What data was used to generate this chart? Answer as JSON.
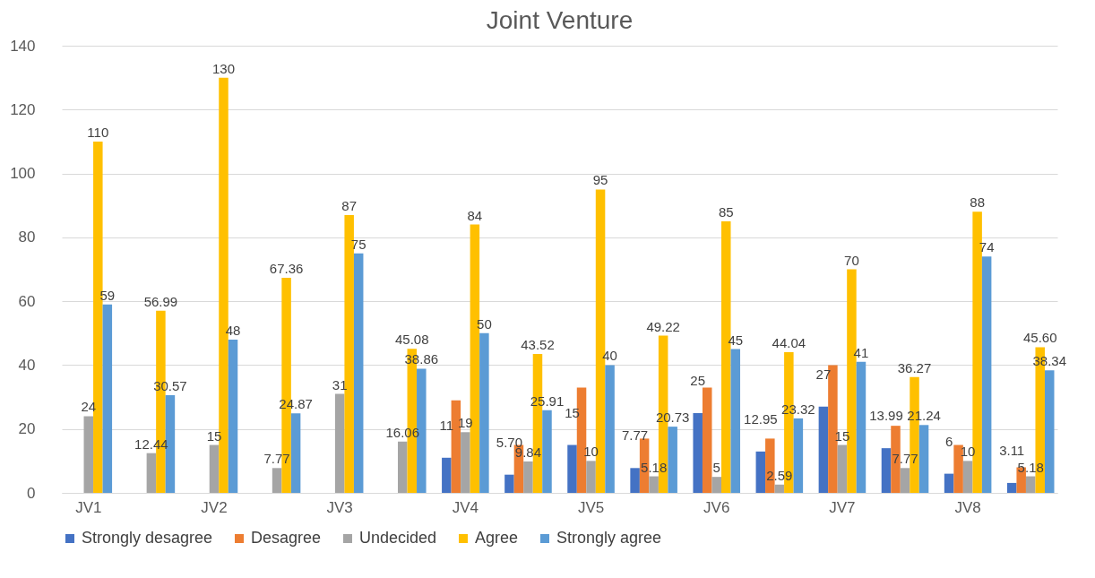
{
  "chart_data": {
    "type": "bar",
    "title": "Joint Venture",
    "categories": [
      "JV1",
      null,
      "JV2",
      null,
      "JV3",
      null,
      "JV4",
      null,
      "JV5",
      null,
      "JV6",
      null,
      "JV7",
      null,
      "JV8",
      null
    ],
    "series": [
      {
        "name": "Strongly desagree",
        "color": "#4472c4",
        "values": [
          null,
          null,
          null,
          null,
          null,
          null,
          11,
          5.7,
          15,
          7.77,
          25,
          12.95,
          27,
          13.99,
          6,
          3.11
        ],
        "value_labels": [
          null,
          null,
          null,
          null,
          null,
          null,
          "11",
          "5.70",
          "15",
          "7.77",
          "25",
          "12.95",
          "27",
          "13.99",
          "6",
          "3.11"
        ]
      },
      {
        "name": "Desagree",
        "color": "#ed7d31",
        "values": [
          null,
          null,
          null,
          null,
          null,
          null,
          29,
          15,
          33,
          17,
          33,
          17,
          40,
          21,
          15,
          8
        ]
      },
      {
        "name": "Undecided",
        "color": "#a5a5a5",
        "values": [
          24,
          12.44,
          15,
          7.77,
          31,
          16.06,
          19,
          9.84,
          10,
          5.18,
          5,
          2.59,
          15,
          7.77,
          10,
          5.18
        ],
        "value_labels": [
          "24",
          "12.44",
          "15",
          "7.77",
          "31",
          "16.06",
          "19",
          "9.84",
          "10",
          "5.18",
          "5",
          "2.59",
          "15",
          "7.77",
          "10",
          "5.18"
        ]
      },
      {
        "name": "Agree",
        "color": "#ffc000",
        "values": [
          110,
          56.99,
          130,
          67.36,
          87,
          45.08,
          84,
          43.52,
          95,
          49.22,
          85,
          44.04,
          70,
          36.27,
          88,
          45.6
        ],
        "value_labels": [
          "110",
          "56.99",
          "130",
          "67.36",
          "87",
          "45.08",
          "84",
          "43.52",
          "95",
          "49.22",
          "85",
          "44.04",
          "70",
          "36.27",
          "88",
          "45.60"
        ]
      },
      {
        "name": "Strongly agree",
        "color": "#5b9bd5",
        "values": [
          59,
          30.57,
          48,
          24.87,
          75,
          38.86,
          50,
          25.91,
          40,
          20.73,
          45,
          23.32,
          41,
          21.24,
          74,
          38.34
        ],
        "value_labels": [
          "59",
          "30.57",
          "48",
          "24.87",
          "75",
          "38.86",
          "50",
          "25.91",
          "40",
          "20.73",
          "45",
          "23.32",
          "41",
          "21.24",
          "74",
          "38.34"
        ]
      }
    ],
    "ylim": [
      0,
      140
    ],
    "yticks": [
      0,
      20,
      40,
      60,
      80,
      100,
      120,
      140
    ],
    "grid": "y",
    "legend": "bottom"
  }
}
